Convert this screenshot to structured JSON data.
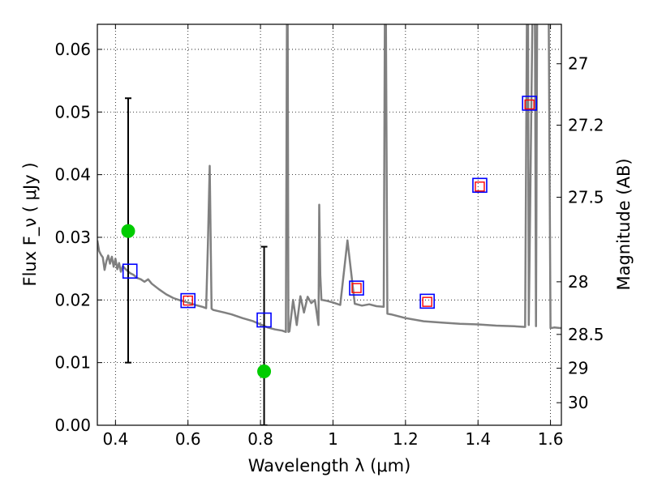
{
  "chart_data": {
    "type": "scatter",
    "xlabel": "Wavelength  λ (μm)",
    "ylabel": "Flux  F_ν  ( μJy )",
    "ylabel_right": "Magnitude (AB)",
    "xlim": [
      0.35,
      1.63
    ],
    "ylim": [
      0.0,
      0.064
    ],
    "grid": true,
    "x_ticks": [
      0.4,
      0.6,
      0.8,
      1.0,
      1.2,
      1.4,
      1.6
    ],
    "x_tick_labels": [
      "0.4",
      "0.6",
      "0.8",
      "1",
      "1.2",
      "1.4",
      "1.6"
    ],
    "y_ticks": [
      0.0,
      0.01,
      0.02,
      0.03,
      0.04,
      0.05,
      0.06
    ],
    "y_tick_labels": [
      "0.00",
      "0.01",
      "0.02",
      "0.03",
      "0.04",
      "0.05",
      "0.06"
    ],
    "right_ticks": [
      {
        "label": "27",
        "flux": 0.0577
      },
      {
        "label": "27.2",
        "flux": 0.0479
      },
      {
        "label": "27.5",
        "flux": 0.0364
      },
      {
        "label": "28",
        "flux": 0.0229
      },
      {
        "label": "28.5",
        "flux": 0.0145
      },
      {
        "label": "29",
        "flux": 0.0091
      },
      {
        "label": "30",
        "flux": 0.0036
      }
    ],
    "colors": {
      "model": "#808080",
      "observed": "#00cc00",
      "errorbar": "#000000",
      "model_photometry": "#0000ff",
      "fit_photometry": "#ff0000"
    },
    "series": [
      {
        "style": "model-spectrum-line",
        "x": [
          0.35,
          0.355,
          0.36,
          0.365,
          0.37,
          0.375,
          0.38,
          0.385,
          0.39,
          0.395,
          0.4,
          0.405,
          0.41,
          0.415,
          0.42,
          0.43,
          0.44,
          0.45,
          0.46,
          0.47,
          0.48,
          0.49,
          0.5,
          0.52,
          0.54,
          0.56,
          0.58,
          0.6,
          0.62,
          0.64,
          0.65,
          0.655,
          0.66,
          0.665,
          0.67,
          0.7,
          0.72,
          0.75,
          0.78,
          0.8,
          0.82,
          0.84,
          0.86,
          0.87,
          0.873,
          0.875,
          0.877,
          0.88,
          0.89,
          0.9,
          0.91,
          0.92,
          0.93,
          0.94,
          0.95,
          0.96,
          0.962,
          0.965,
          0.968,
          0.97,
          0.98,
          1.0,
          1.02,
          1.04,
          1.06,
          1.08,
          1.1,
          1.12,
          1.14,
          1.143,
          1.146,
          1.15,
          1.16,
          1.2,
          1.25,
          1.3,
          1.35,
          1.4,
          1.45,
          1.5,
          1.53,
          1.535,
          1.538,
          1.54,
          1.55,
          1.557,
          1.56,
          1.563,
          1.57,
          1.59,
          1.595,
          1.6,
          1.61,
          1.63
        ],
        "y": [
          0.0295,
          0.0278,
          0.0272,
          0.0268,
          0.0248,
          0.0262,
          0.0271,
          0.0258,
          0.0269,
          0.0253,
          0.0266,
          0.0249,
          0.0259,
          0.0245,
          0.0254,
          0.0248,
          0.0243,
          0.024,
          0.0235,
          0.0233,
          0.0229,
          0.0233,
          0.0226,
          0.0217,
          0.0209,
          0.0203,
          0.0199,
          0.0196,
          0.0192,
          0.0189,
          0.0187,
          0.029,
          0.0414,
          0.0186,
          0.0184,
          0.018,
          0.0177,
          0.0171,
          0.0166,
          0.0161,
          0.0156,
          0.0153,
          0.0151,
          0.0149,
          0.065,
          0.065,
          0.0149,
          0.015,
          0.02,
          0.016,
          0.0206,
          0.018,
          0.0205,
          0.0195,
          0.02,
          0.016,
          0.0352,
          0.024,
          0.02,
          0.02,
          0.0199,
          0.0196,
          0.0192,
          0.0295,
          0.0194,
          0.0191,
          0.0193,
          0.019,
          0.0189,
          0.065,
          0.065,
          0.0178,
          0.0177,
          0.0171,
          0.0166,
          0.0164,
          0.0162,
          0.0161,
          0.0159,
          0.0158,
          0.0157,
          0.065,
          0.065,
          0.016,
          0.065,
          0.065,
          0.0158,
          0.065,
          0.065,
          0.065,
          0.065,
          0.0155,
          0.0156,
          0.0155
        ]
      },
      {
        "style": "observed-points-with-errorbars",
        "x": [
          0.435,
          0.81
        ],
        "y": [
          0.031,
          0.0086
        ],
        "yerr_low": [
          0.01,
          0.0
        ],
        "yerr_high": [
          0.0522,
          0.0285
        ]
      },
      {
        "style": "model-photometry-blue-squares",
        "x": [
          0.44,
          0.6,
          0.81,
          1.065,
          1.26,
          1.405,
          1.542
        ],
        "y": [
          0.0246,
          0.0199,
          0.0168,
          0.0219,
          0.0198,
          0.0383,
          0.0514
        ]
      },
      {
        "style": "fit-photometry-red-squares",
        "x": [
          0.6,
          1.065,
          1.26,
          1.405,
          1.542
        ],
        "y": [
          0.0199,
          0.0219,
          0.0197,
          0.0381,
          0.0512
        ]
      }
    ]
  }
}
